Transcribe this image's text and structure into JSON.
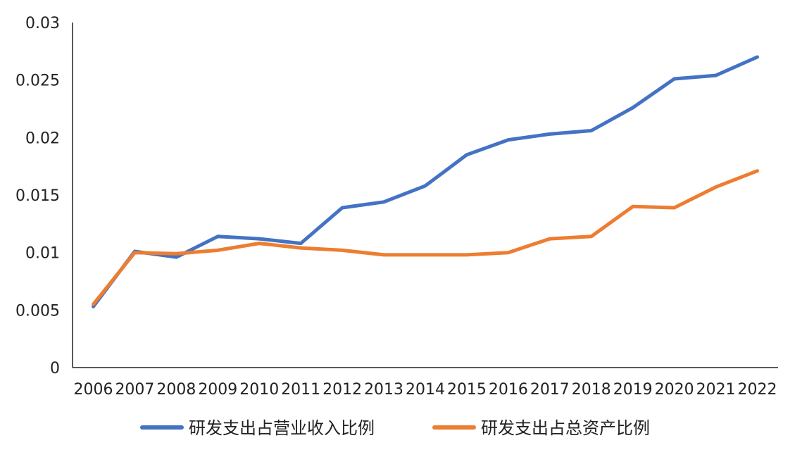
{
  "chart_data": {
    "type": "line",
    "title": "",
    "xlabel": "",
    "ylabel": "",
    "x": [
      "2006",
      "2007",
      "2008",
      "2009",
      "2010",
      "2011",
      "2012",
      "2013",
      "2014",
      "2015",
      "2016",
      "2017",
      "2018",
      "2019",
      "2020",
      "2021",
      "2022"
    ],
    "ylim": [
      0,
      0.03
    ],
    "yticks": [
      "0",
      "0.005",
      "0.01",
      "0.015",
      "0.02",
      "0.025",
      "0.03"
    ],
    "ytick_values": [
      0,
      0.005,
      0.01,
      0.015,
      0.02,
      0.025,
      0.03
    ],
    "grid": false,
    "legend_position": "bottom",
    "series": [
      {
        "name": "研发支出占营业收入比例",
        "color": "#4472C4",
        "values": [
          0.0053,
          0.0101,
          0.0096,
          0.0114,
          0.0112,
          0.0108,
          0.0139,
          0.0144,
          0.0158,
          0.0185,
          0.0198,
          0.0203,
          0.0206,
          0.0226,
          0.0251,
          0.0254,
          0.027
        ]
      },
      {
        "name": "研发支出占总资产比例",
        "color": "#ED7D31",
        "values": [
          0.0055,
          0.01,
          0.0099,
          0.0102,
          0.0108,
          0.0104,
          0.0102,
          0.0098,
          0.0098,
          0.0098,
          0.01,
          0.0112,
          0.0114,
          0.014,
          0.0139,
          0.0157,
          0.0171
        ]
      }
    ]
  }
}
